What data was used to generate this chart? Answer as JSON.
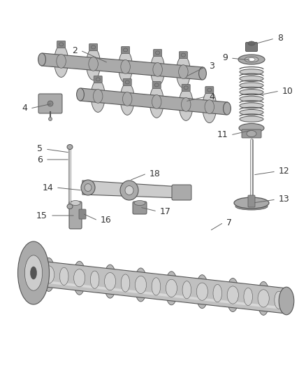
{
  "bg_color": "#ffffff",
  "edge_color": "#555555",
  "dark_gray": "#888888",
  "mid_gray": "#aaaaaa",
  "light_gray": "#cccccc",
  "highlight": "#e8e8e8",
  "label_fontsize": 9,
  "label_color": "#333333",
  "leader_color": "#666666",
  "fig_width": 4.38,
  "fig_height": 5.33
}
